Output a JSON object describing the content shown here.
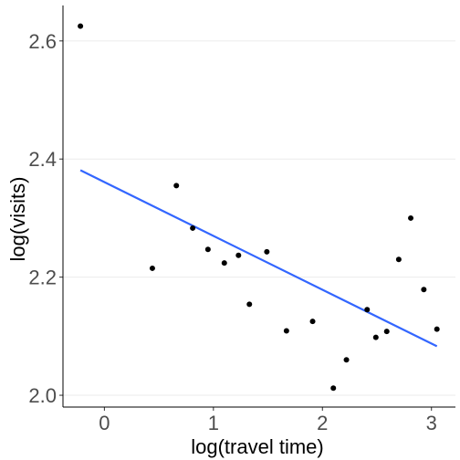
{
  "chart_data": {
    "type": "scatter",
    "xlabel": "log(travel time)",
    "ylabel": "log(visits)",
    "xlim": [
      -0.38,
      3.22
    ],
    "ylim": [
      1.98,
      2.66
    ],
    "x_ticks": [
      0,
      1,
      2,
      3
    ],
    "x_tick_labels": [
      "0",
      "1",
      "2",
      "3"
    ],
    "y_ticks": [
      2.0,
      2.2,
      2.4,
      2.6
    ],
    "y_tick_labels": [
      "2.0",
      "2.2",
      "2.4",
      "2.6"
    ],
    "grid": "horizontal",
    "colors": {
      "points": "#000000",
      "trend": "#3366ff",
      "grid": "#ebebeb"
    },
    "points": [
      {
        "x": -0.22,
        "y": 2.625
      },
      {
        "x": 0.44,
        "y": 2.215
      },
      {
        "x": 0.66,
        "y": 2.355
      },
      {
        "x": 0.81,
        "y": 2.283
      },
      {
        "x": 0.95,
        "y": 2.247
      },
      {
        "x": 1.1,
        "y": 2.224
      },
      {
        "x": 1.23,
        "y": 2.237
      },
      {
        "x": 1.33,
        "y": 2.154
      },
      {
        "x": 1.49,
        "y": 2.243
      },
      {
        "x": 1.67,
        "y": 2.109
      },
      {
        "x": 1.91,
        "y": 2.125
      },
      {
        "x": 2.1,
        "y": 2.012
      },
      {
        "x": 2.22,
        "y": 2.06
      },
      {
        "x": 2.41,
        "y": 2.145
      },
      {
        "x": 2.49,
        "y": 2.098
      },
      {
        "x": 2.59,
        "y": 2.108
      },
      {
        "x": 2.7,
        "y": 2.23
      },
      {
        "x": 2.81,
        "y": 2.3
      },
      {
        "x": 2.93,
        "y": 2.179
      },
      {
        "x": 3.05,
        "y": 2.112
      }
    ],
    "trend_line": {
      "method": "linear",
      "x": [
        -0.22,
        3.05
      ],
      "y": [
        2.381,
        2.083
      ]
    }
  }
}
